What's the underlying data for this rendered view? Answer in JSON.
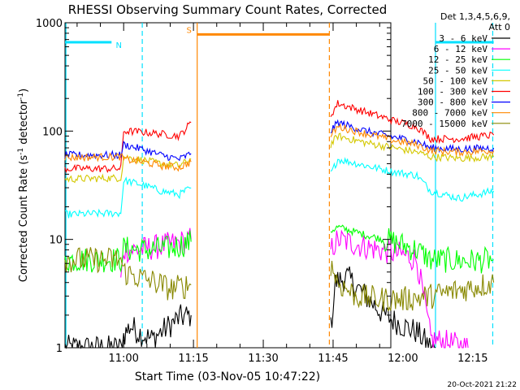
{
  "chart_data": {
    "type": "line",
    "title": "RHESSI Observing Summary Count Rates, Corrected",
    "xlabel": "Start Time (03-Nov-05 10:47:22)",
    "ylabel_main": "Corrected Count Rate (s",
    "ylabel_sup1": "-1",
    "ylabel_mid": " detector",
    "ylabel_sup2": "-1",
    "ylabel_end": ")",
    "y_scale": "log",
    "ylim": [
      1,
      1000
    ],
    "y_ticks": [
      {
        "v": 1,
        "label": "1"
      },
      {
        "v": 10,
        "label": "10"
      },
      {
        "v": 100,
        "label": "100"
      },
      {
        "v": 1000,
        "label": "1000"
      }
    ],
    "xlim_minutes": [
      -12.6,
      57.4
    ],
    "x_ticks": [
      {
        "m": 0,
        "label": "11:00"
      },
      {
        "m": 15,
        "label": "11:15"
      },
      {
        "m": 30,
        "label": "11:30"
      },
      {
        "m": 45,
        "label": "11:45"
      },
      {
        "m": 60,
        "label": "12:00"
      },
      {
        "m": 75,
        "label": "12:15"
      }
    ],
    "legend_header": [
      "Det 1,3,4,5,6,9,",
      "Att 0"
    ],
    "footer": "20-Oct-2021 21:22",
    "flags": [
      {
        "label": "N",
        "color": "#00e0ff"
      },
      {
        "label": "S",
        "color": "#ff8800"
      }
    ],
    "series": [
      {
        "name": "3 - 6 keV",
        "color": "#000000"
      },
      {
        "name": "6 - 12 keV",
        "color": "#ff00ff"
      },
      {
        "name": "12 - 25 keV",
        "color": "#00ff00"
      },
      {
        "name": "25 - 50 keV",
        "color": "#00ffff"
      },
      {
        "name": "50 - 100 keV",
        "color": "#d4c800"
      },
      {
        "name": "100 - 300 keV",
        "color": "#ff0000"
      },
      {
        "name": "300 - 800 keV",
        "color": "#0000ff"
      },
      {
        "name": "800 - 7000 keV",
        "color": "#ff8800"
      },
      {
        "name": "7000 - 15000 keV",
        "color": "#888800"
      }
    ],
    "segments": [
      {
        "series": 0,
        "points": [
          [
            -12.6,
            1
          ],
          [
            -0.6,
            1
          ],
          [
            0,
            1.3
          ],
          [
            1.5,
            1.6
          ],
          [
            3,
            1.4
          ],
          [
            6,
            1.2
          ],
          [
            9,
            1.5
          ],
          [
            12,
            1.9
          ],
          [
            14.5,
            2.0
          ]
        ]
      },
      {
        "series": 0,
        "points": [
          [
            44.5,
            1.5
          ],
          [
            45.5,
            4
          ],
          [
            48,
            4.5
          ],
          [
            52,
            3
          ],
          [
            56,
            2
          ],
          [
            60,
            1.6
          ],
          [
            63,
            1.4
          ],
          [
            66,
            1
          ],
          [
            67,
            1
          ]
        ]
      },
      {
        "series": 1,
        "points": [
          [
            -0.6,
            4
          ],
          [
            0,
            8
          ],
          [
            3,
            8
          ],
          [
            7,
            8.5
          ],
          [
            10,
            9
          ],
          [
            13,
            9.5
          ],
          [
            14.5,
            10
          ]
        ]
      },
      {
        "series": 1,
        "points": [
          [
            44.5,
            8
          ],
          [
            46,
            10
          ],
          [
            50,
            9
          ],
          [
            55,
            8
          ],
          [
            60,
            7.2
          ],
          [
            63,
            6.5
          ],
          [
            66,
            1.2
          ],
          [
            74,
            1
          ]
        ]
      },
      {
        "series": 2,
        "points": [
          [
            -12.6,
            6.5
          ],
          [
            -0.6,
            6.5
          ],
          [
            0,
            8.2
          ],
          [
            5,
            8
          ],
          [
            10,
            8.3
          ],
          [
            14.5,
            9.5
          ]
        ]
      },
      {
        "series": 2,
        "points": [
          [
            44.5,
            12
          ],
          [
            46,
            13
          ],
          [
            52,
            11
          ],
          [
            58,
            9.5
          ],
          [
            63,
            8
          ],
          [
            66,
            6.5
          ],
          [
            75,
            6.3
          ],
          [
            79.5,
            6.5
          ]
        ]
      },
      {
        "series": 3,
        "points": [
          [
            -12.6,
            17
          ],
          [
            -0.6,
            17.5
          ],
          [
            0,
            35
          ],
          [
            4,
            32
          ],
          [
            8,
            28
          ],
          [
            12,
            26
          ],
          [
            14.5,
            30
          ]
        ]
      },
      {
        "series": 3,
        "points": [
          [
            44.5,
            40
          ],
          [
            46,
            55
          ],
          [
            52,
            48
          ],
          [
            58,
            42
          ],
          [
            63,
            39
          ],
          [
            66,
            28
          ],
          [
            72,
            24
          ],
          [
            79.5,
            28
          ]
        ]
      },
      {
        "series": 4,
        "points": [
          [
            -12.6,
            36
          ],
          [
            -0.6,
            37
          ],
          [
            0,
            58
          ],
          [
            4,
            54
          ],
          [
            8,
            50
          ],
          [
            12,
            48
          ],
          [
            14.5,
            55
          ]
        ]
      },
      {
        "series": 4,
        "points": [
          [
            44.5,
            75
          ],
          [
            46,
            90
          ],
          [
            52,
            78
          ],
          [
            58,
            70
          ],
          [
            63,
            64
          ],
          [
            66,
            58
          ],
          [
            72,
            56
          ],
          [
            79.5,
            58
          ]
        ]
      },
      {
        "series": 5,
        "points": [
          [
            -12.6,
            45
          ],
          [
            -0.6,
            45
          ],
          [
            0,
            100
          ],
          [
            4,
            98
          ],
          [
            8,
            94
          ],
          [
            12,
            90
          ],
          [
            14.5,
            120
          ]
        ]
      },
      {
        "series": 5,
        "points": [
          [
            44.5,
            140
          ],
          [
            46,
            180
          ],
          [
            52,
            150
          ],
          [
            58,
            125
          ],
          [
            63,
            110
          ],
          [
            66,
            85
          ],
          [
            72,
            85
          ],
          [
            79.5,
            92
          ]
        ]
      },
      {
        "series": 6,
        "points": [
          [
            -12.6,
            60
          ],
          [
            -0.6,
            60
          ],
          [
            0,
            75
          ],
          [
            4,
            68
          ],
          [
            8,
            60
          ],
          [
            12,
            55
          ],
          [
            14.5,
            62
          ]
        ]
      },
      {
        "series": 6,
        "points": [
          [
            44.5,
            100
          ],
          [
            46,
            120
          ],
          [
            52,
            100
          ],
          [
            58,
            88
          ],
          [
            63,
            80
          ],
          [
            66,
            70
          ],
          [
            72,
            68
          ],
          [
            79.5,
            70
          ]
        ]
      },
      {
        "series": 7,
        "points": [
          [
            -12.6,
            57
          ],
          [
            -0.6,
            58
          ],
          [
            0,
            55
          ],
          [
            4,
            52
          ],
          [
            8,
            48
          ],
          [
            12,
            46
          ],
          [
            14.5,
            52
          ]
        ]
      },
      {
        "series": 7,
        "points": [
          [
            44.5,
            90
          ],
          [
            46,
            110
          ],
          [
            52,
            95
          ],
          [
            58,
            82
          ],
          [
            63,
            75
          ],
          [
            66,
            66
          ],
          [
            72,
            64
          ],
          [
            79.5,
            66
          ]
        ]
      },
      {
        "series": 8,
        "points": [
          [
            -12.6,
            6.5
          ],
          [
            -0.6,
            6.5
          ],
          [
            0,
            5
          ],
          [
            3,
            4.5
          ],
          [
            7,
            4
          ],
          [
            10,
            3.5
          ],
          [
            14.5,
            3.8
          ]
        ]
      },
      {
        "series": 8,
        "points": [
          [
            44.5,
            6
          ],
          [
            46,
            4
          ],
          [
            50,
            3
          ],
          [
            55,
            2.8
          ],
          [
            60,
            2.8
          ],
          [
            66,
            3
          ],
          [
            72,
            3.4
          ],
          [
            79.5,
            4
          ]
        ]
      }
    ],
    "flag_lines": [
      {
        "flag": 0,
        "y": 660,
        "spans": [
          [
            -12.6,
            -2.6
          ],
          [
            67,
            79.5
          ]
        ]
      },
      {
        "flag": 1,
        "y": 780,
        "spans": [
          [
            15.8,
            44.2
          ]
        ]
      }
    ],
    "vlines": [
      {
        "color": "#00e0ff",
        "dash": false,
        "m": -12.4
      },
      {
        "color": "#00e0ff",
        "dash": true,
        "m": 4
      },
      {
        "color": "#ff8800",
        "dash": false,
        "m": 15.8
      },
      {
        "color": "#ff8800",
        "dash": true,
        "m": 44.2
      },
      {
        "color": "#00e0ff",
        "dash": false,
        "m": 67
      },
      {
        "color": "#00e0ff",
        "dash": true,
        "m": 79.3
      }
    ]
  }
}
